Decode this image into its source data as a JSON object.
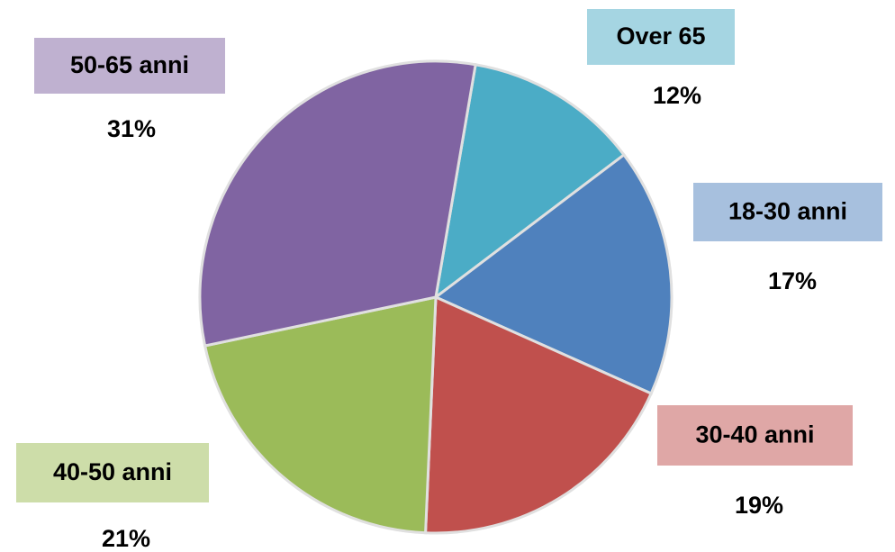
{
  "chart_data": {
    "type": "pie",
    "categories": [
      "Over 65",
      "18-30 anni",
      "30-40 anni",
      "40-50 anni",
      "50-65 anni"
    ],
    "values": [
      12,
      17,
      19,
      21,
      31
    ],
    "value_labels": [
      "12%",
      "17%",
      "19%",
      "21%",
      "31%"
    ],
    "colors": [
      "#4bacc6",
      "#4f81bd",
      "#c0504d",
      "#9bbb59",
      "#8064a2"
    ],
    "label_colors": [
      "#a5d5e2",
      "#a7c0de",
      "#dfa7a6",
      "#cddda9",
      "#bfb1d0"
    ]
  }
}
